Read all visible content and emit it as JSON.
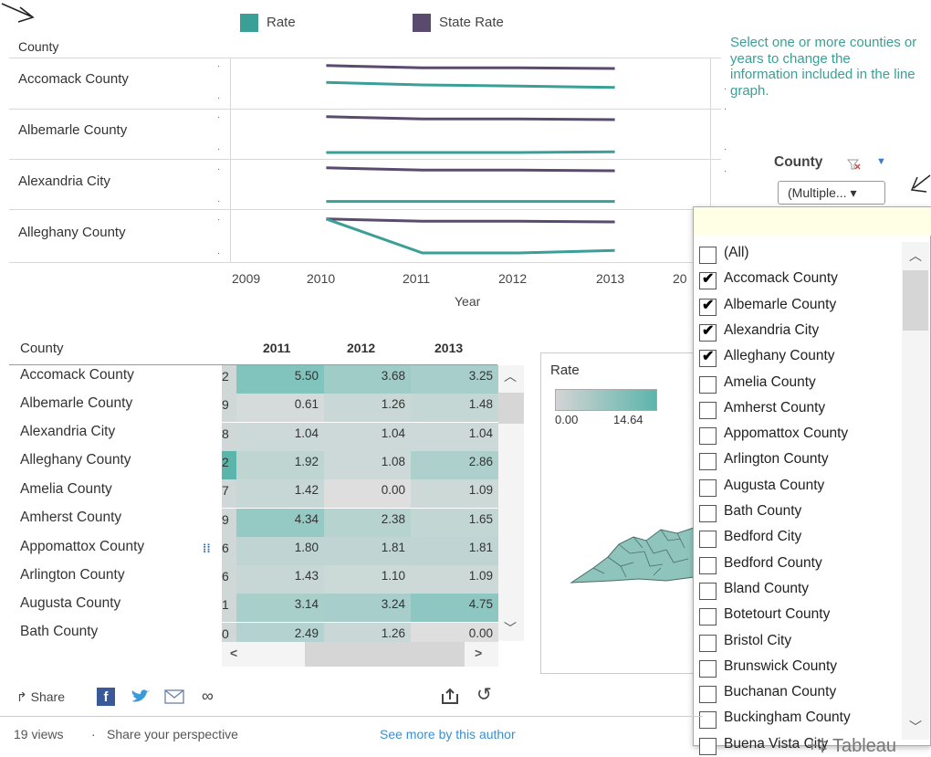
{
  "legend": {
    "items": [
      {
        "label": "Rate",
        "color": "#3a9f96"
      },
      {
        "label": "State Rate",
        "color": "#5a4a6e"
      }
    ]
  },
  "line_chart": {
    "row_header": "County",
    "rows": [
      "Accomack County",
      "Albemarle County",
      "Alexandria City",
      "Alleghany County"
    ],
    "x_ticks": [
      "2009",
      "2010",
      "2011",
      "2012",
      "2013",
      "20"
    ],
    "x_label": "Year"
  },
  "chart_data": {
    "type": "line",
    "x": [
      2010,
      2011,
      2012,
      2013
    ],
    "xlim": [
      2009,
      2014
    ],
    "panels": [
      {
        "county": "Accomack County",
        "series": [
          {
            "name": "State Rate",
            "values": [
              0.98,
              0.92,
              0.92,
              0.9
            ]
          },
          {
            "name": "Rate",
            "values": [
              0.52,
              0.45,
              0.42,
              0.38
            ]
          }
        ]
      },
      {
        "county": "Albemarle County",
        "series": [
          {
            "name": "State Rate",
            "values": [
              0.98,
              0.92,
              0.92,
              0.9
            ]
          },
          {
            "name": "Rate",
            "values": [
              0.0,
              0.0,
              0.0,
              0.02
            ]
          }
        ]
      },
      {
        "county": "Alexandria City",
        "series": [
          {
            "name": "State Rate",
            "values": [
              0.98,
              0.92,
              0.92,
              0.9
            ]
          },
          {
            "name": "Rate",
            "values": [
              0.06,
              0.06,
              0.06,
              0.06
            ]
          }
        ]
      },
      {
        "county": "Alleghany County",
        "series": [
          {
            "name": "State Rate",
            "values": [
              0.98,
              0.92,
              0.92,
              0.9
            ]
          },
          {
            "name": "Rate",
            "values": [
              0.98,
              0.05,
              0.05,
              0.12
            ]
          }
        ]
      }
    ]
  },
  "note": {
    "text": "Select one or more counties or years to change the information included in the line graph.",
    "color": "#3a9f96"
  },
  "filter": {
    "label": "County",
    "value": "(Multiple...  ▾",
    "arrow_icon": "arrow-pointer-icon"
  },
  "table": {
    "header_county": "County",
    "years": [
      "2011",
      "2012",
      "2013"
    ],
    "rows": [
      {
        "name": "Accomack County",
        "partial": "2",
        "values": [
          "5.50",
          "3.68",
          "3.25"
        ]
      },
      {
        "name": "Albemarle County",
        "partial": "9",
        "values": [
          "0.61",
          "1.26",
          "1.48"
        ]
      },
      {
        "name": "Alexandria City",
        "partial": "8",
        "values": [
          "1.04",
          "1.04",
          "1.04"
        ]
      },
      {
        "name": "Alleghany County",
        "partial": "2",
        "values": [
          "1.92",
          "1.08",
          "2.86"
        ]
      },
      {
        "name": "Amelia County",
        "partial": "7",
        "values": [
          "1.42",
          "0.00",
          "1.09"
        ]
      },
      {
        "name": "Amherst County",
        "partial": "9",
        "values": [
          "4.34",
          "2.38",
          "1.65"
        ]
      },
      {
        "name": "Appomattox County",
        "partial": "6",
        "values": [
          "1.80",
          "1.81",
          "1.81"
        ]
      },
      {
        "name": "Arlington County",
        "partial": "6",
        "values": [
          "1.43",
          "1.10",
          "1.09"
        ]
      },
      {
        "name": "Augusta County",
        "partial": "1",
        "values": [
          "3.14",
          "3.24",
          "4.75"
        ]
      },
      {
        "name": "Bath County",
        "partial": "0",
        "values": [
          "2.49",
          "1.26",
          "0.00"
        ]
      }
    ]
  },
  "map_legend": {
    "title": "Rate",
    "min": "0.00",
    "max": "14.64"
  },
  "dropdown": {
    "items": [
      {
        "label": "(All)",
        "checked": false
      },
      {
        "label": "Accomack County",
        "checked": true
      },
      {
        "label": "Albemarle County",
        "checked": true
      },
      {
        "label": "Alexandria City",
        "checked": true
      },
      {
        "label": "Alleghany County",
        "checked": true
      },
      {
        "label": "Amelia County",
        "checked": false
      },
      {
        "label": "Amherst County",
        "checked": false
      },
      {
        "label": "Appomattox County",
        "checked": false
      },
      {
        "label": "Arlington County",
        "checked": false
      },
      {
        "label": "Augusta County",
        "checked": false
      },
      {
        "label": "Bath County",
        "checked": false
      },
      {
        "label": "Bedford City",
        "checked": false
      },
      {
        "label": "Bedford County",
        "checked": false
      },
      {
        "label": "Bland County",
        "checked": false
      },
      {
        "label": "Botetourt County",
        "checked": false
      },
      {
        "label": "Bristol City",
        "checked": false
      },
      {
        "label": "Brunswick County",
        "checked": false
      },
      {
        "label": "Buchanan County",
        "checked": false
      },
      {
        "label": "Buckingham County",
        "checked": false
      },
      {
        "label": "Buena Vista City",
        "checked": false
      }
    ]
  },
  "footer": {
    "share_label": "Share",
    "views": "19 views",
    "separator": "·",
    "perspective": "Share your perspective",
    "more": "See more by this author",
    "brand": "+‡ Tableau"
  }
}
